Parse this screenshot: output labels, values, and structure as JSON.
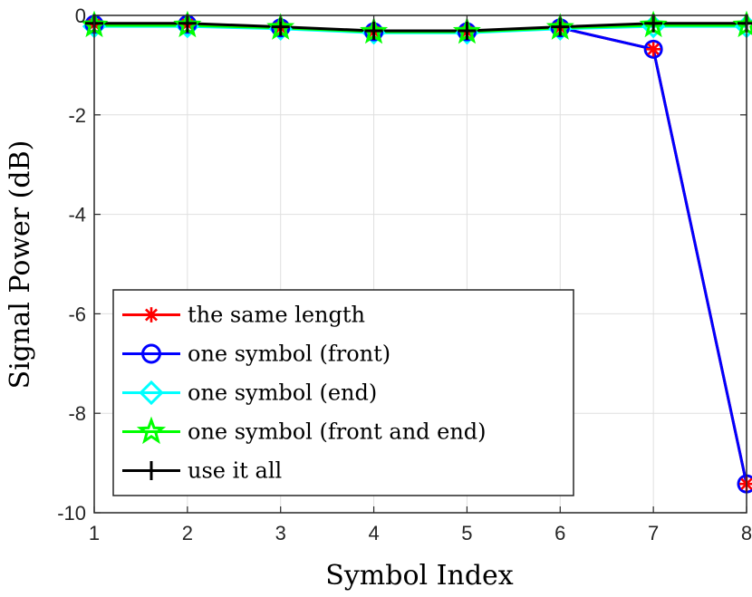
{
  "chart_data": {
    "type": "line",
    "xlabel": "Symbol Index",
    "ylabel": "Signal Power (dB)",
    "x": [
      1,
      2,
      3,
      4,
      5,
      6,
      7,
      8
    ],
    "xlim": [
      1,
      8
    ],
    "ylim": [
      -10,
      0
    ],
    "xticks": [
      "1",
      "2",
      "3",
      "4",
      "5",
      "6",
      "7",
      "8"
    ],
    "yticks": [
      "-10",
      "-8",
      "-6",
      "-4",
      "-2",
      "0"
    ],
    "grid": true,
    "legend_position": "bottom-left",
    "series": [
      {
        "name": "the same length",
        "color": "#ff0000",
        "marker": "asterisk",
        "values": [
          -0.18,
          -0.18,
          -0.25,
          -0.33,
          -0.33,
          -0.25,
          -0.68,
          -9.42
        ]
      },
      {
        "name": "one symbol (front)",
        "color": "#0000ff",
        "marker": "circle",
        "values": [
          -0.18,
          -0.18,
          -0.25,
          -0.33,
          -0.33,
          -0.25,
          -0.68,
          -9.42
        ]
      },
      {
        "name": "one symbol (end)",
        "color": "#00ffff",
        "marker": "diamond",
        "values": [
          -0.22,
          -0.22,
          -0.27,
          -0.35,
          -0.35,
          -0.27,
          -0.22,
          -0.22
        ]
      },
      {
        "name": "one symbol (front and end)",
        "color": "#00ff00",
        "marker": "pentagram",
        "values": [
          -0.2,
          -0.2,
          -0.25,
          -0.33,
          -0.33,
          -0.25,
          -0.2,
          -0.2
        ]
      },
      {
        "name": "use it all",
        "color": "#000000",
        "marker": "plus",
        "values": [
          -0.16,
          -0.16,
          -0.23,
          -0.31,
          -0.31,
          -0.23,
          -0.16,
          -0.16
        ]
      }
    ]
  }
}
